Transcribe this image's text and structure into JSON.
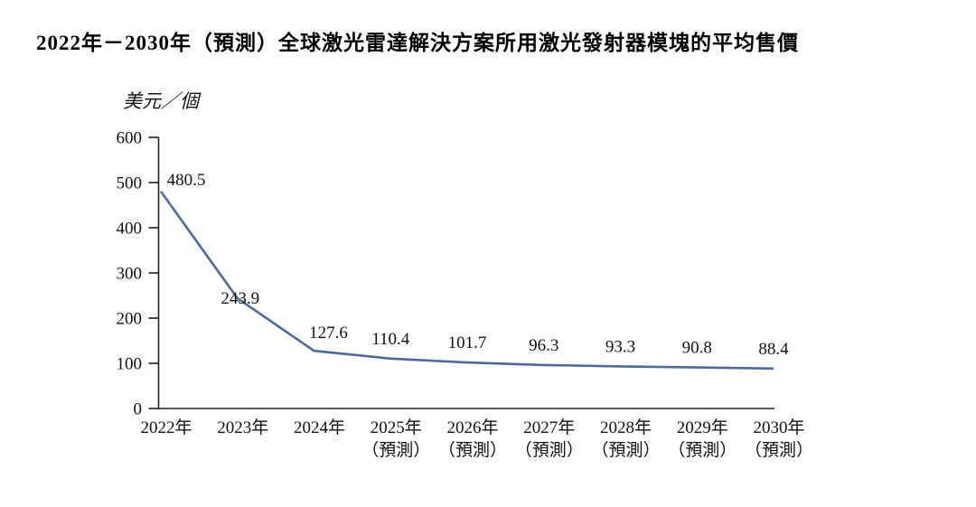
{
  "page": {
    "title": "2022年－2030年（預測）全球激光雷達解決方案所用激光發射器模塊的平均售價"
  },
  "chart_data": {
    "type": "line",
    "title": "2022年－2030年（預測）全球激光雷達解決方案所用激光發射器模塊的平均售價",
    "unit_label": "美元／個",
    "ylabel": "美元／個",
    "xlabel": "",
    "categories": [
      "2022年",
      "2023年",
      "2024年",
      "2025年",
      "2026年",
      "2027年",
      "2028年",
      "2029年",
      "2030年"
    ],
    "category_notes": [
      "",
      "",
      "",
      "（預測）",
      "（預測）",
      "（預測）",
      "（預測）",
      "（預測）",
      "（預測）"
    ],
    "values": [
      480.5,
      243.9,
      127.6,
      110.4,
      101.7,
      96.3,
      93.3,
      90.8,
      88.4
    ],
    "value_labels": [
      "480.5",
      "243.9",
      "127.6",
      "110.4",
      "101.7",
      "96.3",
      "93.3",
      "90.8",
      "88.4"
    ],
    "ylim": [
      0,
      600
    ],
    "y_ticks": [
      0,
      100,
      200,
      300,
      400,
      500,
      600
    ],
    "grid": false,
    "legend": "none",
    "colors": {
      "line": "#4e6a9b",
      "axis": "#1f1f1f",
      "text": "#111111",
      "background": "#ffffff"
    }
  }
}
